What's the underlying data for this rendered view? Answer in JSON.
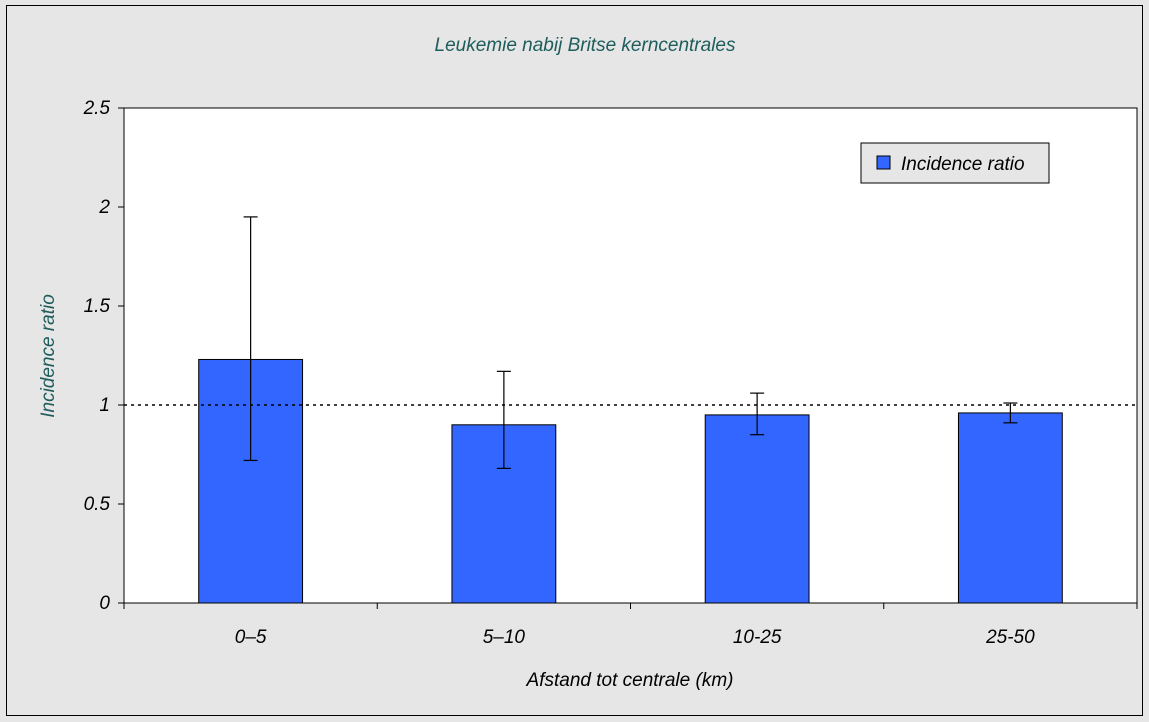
{
  "chart_data": {
    "type": "bar",
    "title": "Leukemie nabij Britse kerncentrales",
    "xlabel": "Afstand tot centrale (km)",
    "ylabel": "Incidence ratio",
    "categories": [
      "0–5",
      "5–10",
      "10-25",
      "25-50"
    ],
    "series": [
      {
        "name": "Incidence ratio",
        "values": [
          1.23,
          0.9,
          0.95,
          0.96
        ],
        "error_low": [
          0.72,
          0.68,
          0.85,
          0.91
        ],
        "error_high": [
          1.95,
          1.17,
          1.06,
          1.01
        ]
      }
    ],
    "ylim": [
      0,
      2.5
    ],
    "yticks": [
      "0",
      "0.5",
      "1",
      "1.5",
      "2",
      "2.5"
    ],
    "ytick_values": [
      0,
      0.5,
      1,
      1.5,
      2,
      2.5
    ],
    "reference_line": 1,
    "grid": false,
    "legend_position": "top-right",
    "colors": {
      "bar": "#3366ff",
      "plot_background": "#ffffff",
      "chart_background": "#e6e6e6"
    }
  }
}
